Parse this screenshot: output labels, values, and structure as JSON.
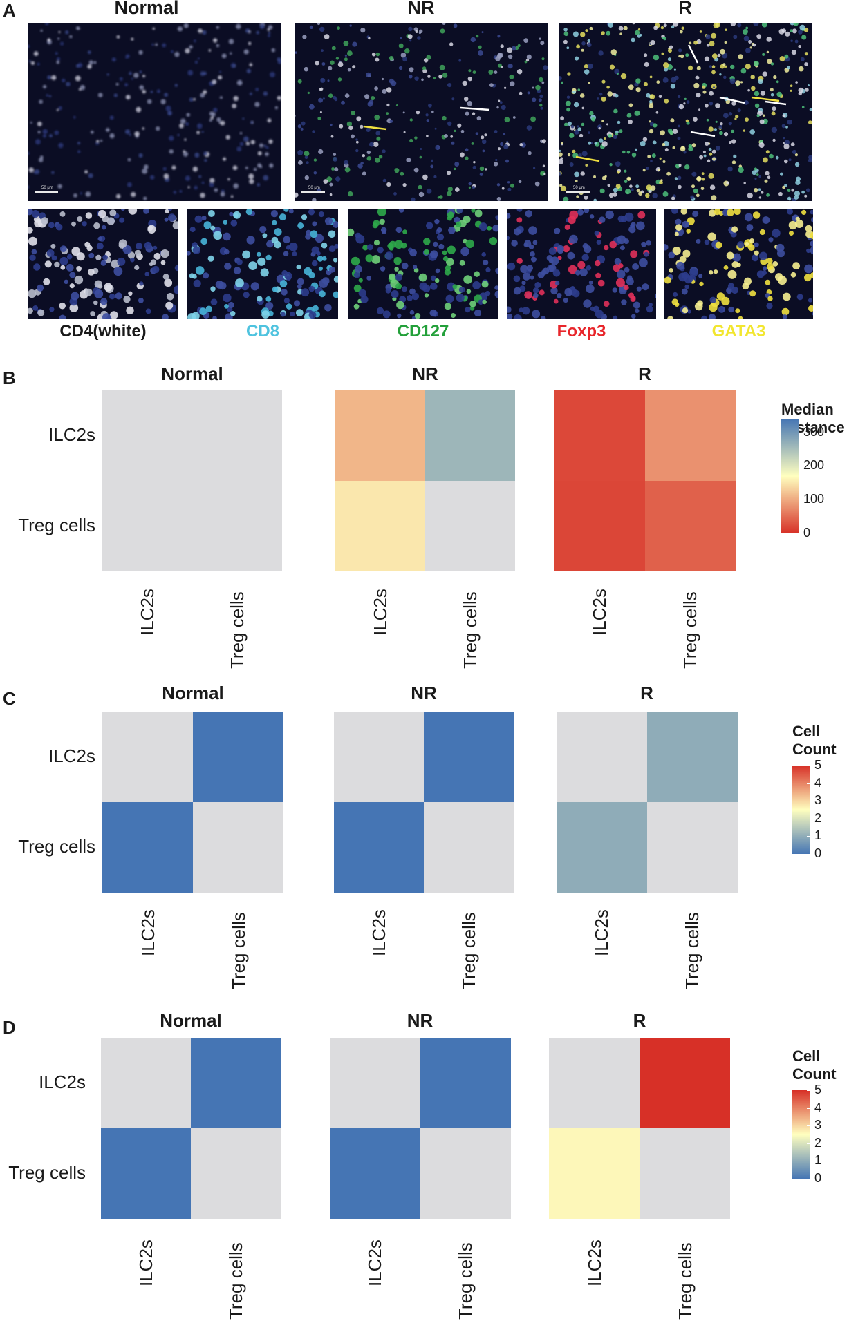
{
  "panel_letters": {
    "A": "A",
    "B": "B",
    "C": "C",
    "D": "D"
  },
  "panel_a": {
    "titles": [
      "Normal",
      "NR",
      "R"
    ],
    "scale_bar_text": "50 μm",
    "channels": [
      {
        "label": "CD4(white)",
        "color": "#1a1a1a"
      },
      {
        "label": "CD8",
        "color": "#4fc3df"
      },
      {
        "label": "CD127",
        "color": "#23a03a"
      },
      {
        "label": "Foxp3",
        "color": "#e8262b"
      },
      {
        "label": "GATA3",
        "color": "#f2e630"
      }
    ]
  },
  "colors": {
    "na_gray": "#dcdcde",
    "scale_low": "#d73027",
    "scale_mid": "#ffffbf",
    "scale_high": "#4575b4"
  },
  "chart_data": [
    {
      "type": "heatmap",
      "panel": "B",
      "legend_title": "Median Distance",
      "legend_ticks": [
        0,
        100,
        200,
        300
      ],
      "scale_range": [
        0,
        340
      ],
      "scale_direction": "low=red, high=blue",
      "row_labels": [
        "ILC2s",
        "Treg cells"
      ],
      "col_labels": [
        "ILC2s",
        "Treg cells"
      ],
      "subplots": [
        {
          "title": "Normal",
          "values": [
            [
              null,
              null
            ],
            [
              null,
              null
            ]
          ]
        },
        {
          "title": "NR",
          "values": [
            [
              110,
              260
            ],
            [
              150,
              null
            ]
          ]
        },
        {
          "title": "R",
          "values": [
            [
              20,
              80
            ],
            [
              18,
              40
            ]
          ]
        }
      ]
    },
    {
      "type": "heatmap",
      "panel": "C",
      "legend_title": "Cell Count",
      "legend_ticks": [
        0,
        1,
        2,
        3,
        4,
        5
      ],
      "scale_range": [
        0,
        5
      ],
      "scale_direction": "low=blue, high=red",
      "row_labels": [
        "ILC2s",
        "Treg cells"
      ],
      "col_labels": [
        "ILC2s",
        "Treg cells"
      ],
      "subplots": [
        {
          "title": "Normal",
          "values": [
            [
              null,
              0
            ],
            [
              0,
              null
            ]
          ]
        },
        {
          "title": "NR",
          "values": [
            [
              null,
              0
            ],
            [
              0,
              null
            ]
          ]
        },
        {
          "title": "R",
          "values": [
            [
              null,
              1
            ],
            [
              1,
              null
            ]
          ]
        }
      ]
    },
    {
      "type": "heatmap",
      "panel": "D",
      "legend_title": "Cell Count",
      "legend_ticks": [
        0,
        1,
        2,
        3,
        4,
        5
      ],
      "scale_range": [
        0,
        5
      ],
      "scale_direction": "low=blue, high=red",
      "row_labels": [
        "ILC2s",
        "Treg cells"
      ],
      "col_labels": [
        "ILC2s",
        "Treg cells"
      ],
      "subplots": [
        {
          "title": "Normal",
          "values": [
            [
              null,
              0
            ],
            [
              0,
              null
            ]
          ]
        },
        {
          "title": "NR",
          "values": [
            [
              null,
              0
            ],
            [
              0,
              null
            ]
          ]
        },
        {
          "title": "R",
          "values": [
            [
              null,
              5
            ],
            [
              2.6,
              null
            ]
          ]
        }
      ]
    }
  ]
}
